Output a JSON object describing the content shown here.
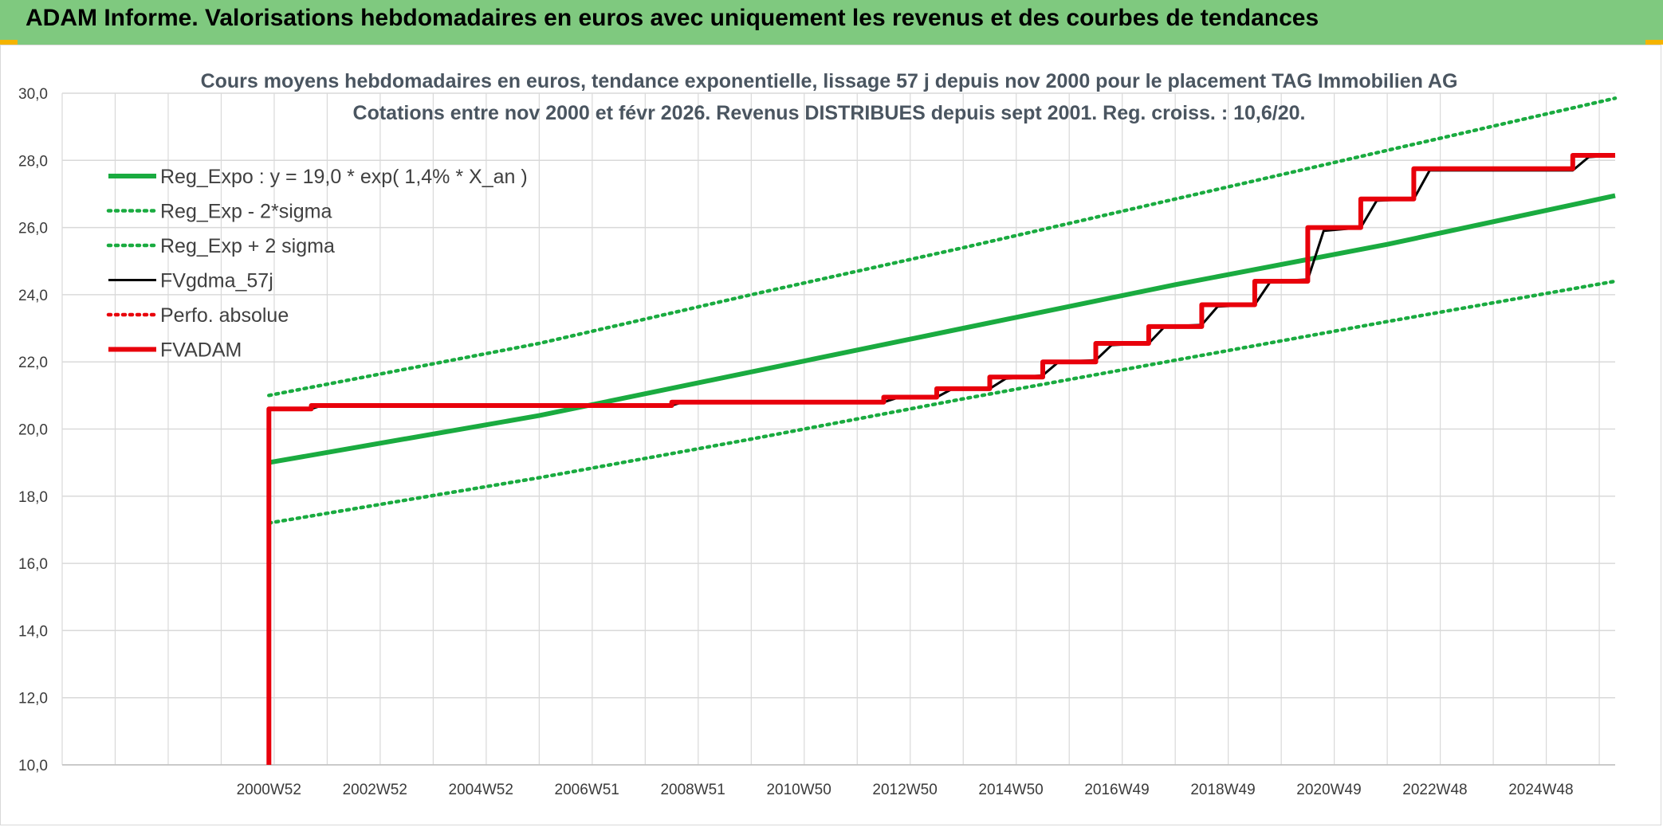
{
  "header": {
    "title": "ADAM Informe. Valorisations hebdomadaires en euros avec uniquement les revenus et des courbes de tendances",
    "background": "#7fc97f"
  },
  "chart_data": {
    "type": "line",
    "title": "Cours moyens hebdomadaires en euros, tendance exponentielle, lissage 57 j depuis nov 2000 pour le placement TAG Immobilien AG",
    "subtitle": "Cotations entre nov 2000 et févr 2026. Revenus DISTRIBUES depuis sept 2001. Reg. croiss. : 10,6/20.",
    "xlabel": "",
    "ylabel": "",
    "ylim": [
      10,
      30
    ],
    "yticks": [
      "10,0",
      "12,0",
      "14,0",
      "16,0",
      "18,0",
      "20,0",
      "22,0",
      "24,0",
      "26,0",
      "28,0",
      "30,0"
    ],
    "xticks": [
      "2000W52",
      "2002W52",
      "2004W52",
      "2006W51",
      "2008W51",
      "2010W50",
      "2012W50",
      "2014W50",
      "2016W49",
      "2018W49",
      "2020W49",
      "2022W48",
      "2024W48"
    ],
    "xlim": [
      1997.0,
      2026.3
    ],
    "grid": true,
    "legend_position": "top-left",
    "series": [
      {
        "name": "Reg_Expo : y = 19,0 * exp( 1,4% *  X_an )",
        "color": "#1aab40",
        "style": "solid-thick",
        "points": [
          [
            2000.9,
            19.0
          ],
          [
            2006.0,
            20.4
          ],
          [
            2010.0,
            21.7
          ],
          [
            2014.0,
            23.0
          ],
          [
            2018.0,
            24.3
          ],
          [
            2022.0,
            25.5
          ],
          [
            2026.3,
            26.95
          ]
        ]
      },
      {
        "name": "Reg_Exp - 2*sigma",
        "color": "#1aab40",
        "style": "dotted",
        "points": [
          [
            2000.9,
            17.2
          ],
          [
            2006.0,
            18.55
          ],
          [
            2010.0,
            19.7
          ],
          [
            2014.0,
            20.9
          ],
          [
            2018.0,
            22.05
          ],
          [
            2022.0,
            23.2
          ],
          [
            2026.3,
            24.4
          ]
        ]
      },
      {
        "name": "Reg_Exp + 2 sigma",
        "color": "#1aab40",
        "style": "dotted",
        "points": [
          [
            2000.9,
            21.0
          ],
          [
            2006.0,
            22.55
          ],
          [
            2010.0,
            24.0
          ],
          [
            2014.0,
            25.4
          ],
          [
            2018.0,
            26.85
          ],
          [
            2022.0,
            28.3
          ],
          [
            2026.3,
            29.85
          ]
        ]
      },
      {
        "name": "FVgdma_57j",
        "color": "#000000",
        "style": "solid",
        "points": [
          [
            2000.9,
            20.6
          ],
          [
            2001.7,
            20.6
          ],
          [
            2001.9,
            20.7
          ],
          [
            2008.5,
            20.7
          ],
          [
            2008.7,
            20.8
          ],
          [
            2012.5,
            20.8
          ],
          [
            2012.8,
            20.95
          ],
          [
            2013.5,
            20.95
          ],
          [
            2013.8,
            21.2
          ],
          [
            2014.5,
            21.2
          ],
          [
            2014.8,
            21.5
          ],
          [
            2015.5,
            21.6
          ],
          [
            2015.8,
            22.0
          ],
          [
            2016.5,
            22.05
          ],
          [
            2016.8,
            22.5
          ],
          [
            2017.5,
            22.55
          ],
          [
            2017.8,
            23.05
          ],
          [
            2018.5,
            23.1
          ],
          [
            2018.8,
            23.65
          ],
          [
            2019.5,
            23.7
          ],
          [
            2019.8,
            24.4
          ],
          [
            2020.5,
            24.45
          ],
          [
            2020.8,
            25.9
          ],
          [
            2021.5,
            26.0
          ],
          [
            2021.8,
            26.8
          ],
          [
            2022.5,
            26.85
          ],
          [
            2022.8,
            27.7
          ],
          [
            2025.5,
            27.7
          ],
          [
            2025.8,
            28.1
          ],
          [
            2026.3,
            28.15
          ]
        ]
      },
      {
        "name": "Perfo. absolue",
        "color": "#e8000b",
        "style": "dotted",
        "points": []
      },
      {
        "name": "FVADAM",
        "color": "#e8000b",
        "style": "solid-thick",
        "points": [
          [
            2000.9,
            10.0
          ],
          [
            2000.9,
            20.6
          ],
          [
            2001.7,
            20.6
          ],
          [
            2001.7,
            20.7
          ],
          [
            2008.5,
            20.7
          ],
          [
            2008.5,
            20.8
          ],
          [
            2012.5,
            20.8
          ],
          [
            2012.5,
            20.95
          ],
          [
            2013.5,
            20.95
          ],
          [
            2013.5,
            21.2
          ],
          [
            2014.5,
            21.2
          ],
          [
            2014.5,
            21.55
          ],
          [
            2015.5,
            21.55
          ],
          [
            2015.5,
            22.0
          ],
          [
            2016.5,
            22.0
          ],
          [
            2016.5,
            22.55
          ],
          [
            2017.5,
            22.55
          ],
          [
            2017.5,
            23.05
          ],
          [
            2018.5,
            23.05
          ],
          [
            2018.5,
            23.7
          ],
          [
            2019.5,
            23.7
          ],
          [
            2019.5,
            24.4
          ],
          [
            2020.5,
            24.4
          ],
          [
            2020.5,
            26.0
          ],
          [
            2021.5,
            26.0
          ],
          [
            2021.5,
            26.85
          ],
          [
            2022.5,
            26.85
          ],
          [
            2022.5,
            27.75
          ],
          [
            2025.5,
            27.75
          ],
          [
            2025.5,
            28.15
          ],
          [
            2026.3,
            28.15
          ]
        ]
      }
    ]
  }
}
